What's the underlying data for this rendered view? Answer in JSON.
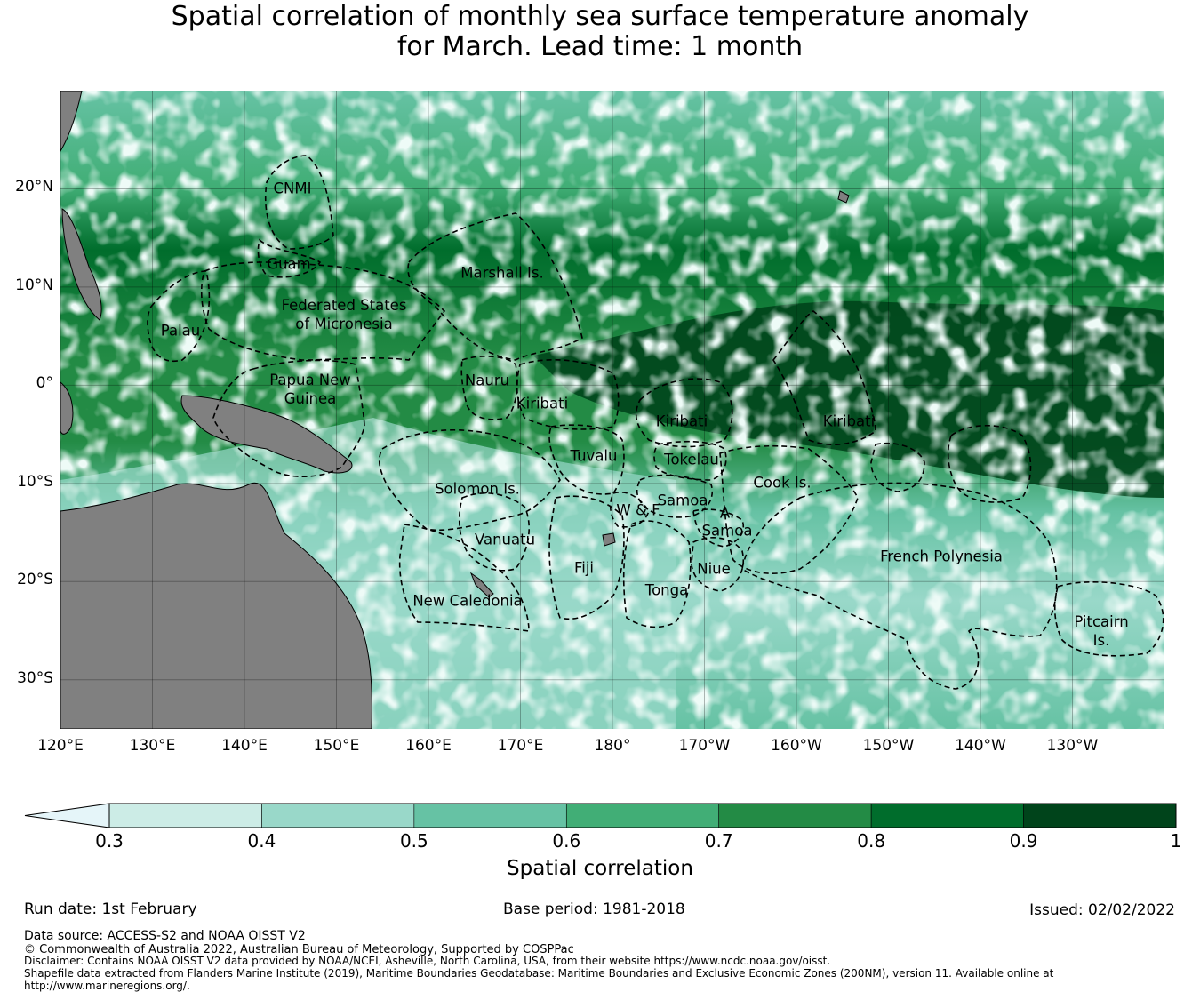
{
  "title": {
    "line1": "Spatial correlation of monthly sea surface temperature anomaly",
    "line2": "for March. Lead time: 1 month"
  },
  "map": {
    "lon_range": [
      120,
      240
    ],
    "lat_range": [
      -35,
      30
    ],
    "lat_ticks": [
      "20°N",
      "10°N",
      "0°",
      "10°S",
      "20°S",
      "30°S"
    ],
    "lon_ticks": [
      "120°E",
      "130°E",
      "140°E",
      "150°E",
      "160°E",
      "170°E",
      "180°",
      "170°W",
      "160°W",
      "150°W",
      "140°W",
      "130°W"
    ],
    "land_color": "#808080",
    "boundary_style": "dashed",
    "region_labels": [
      {
        "text": "CNMI"
      },
      {
        "text": "Guam"
      },
      {
        "text": "Marshall Is."
      },
      {
        "text": "Federated States\nof Micronesia"
      },
      {
        "text": "Palau"
      },
      {
        "text": "Papua New\nGuinea"
      },
      {
        "text": "Nauru"
      },
      {
        "text": "Kiribati"
      },
      {
        "text": "Kiribati"
      },
      {
        "text": "Kiribati"
      },
      {
        "text": "Tuvalu"
      },
      {
        "text": "Tokelau"
      },
      {
        "text": "Solomon Is."
      },
      {
        "text": "Samoa"
      },
      {
        "text": "W & F"
      },
      {
        "text": "A."
      },
      {
        "text": "Samoa"
      },
      {
        "text": "Cook Is."
      },
      {
        "text": "Vanuatu"
      },
      {
        "text": "Fiji"
      },
      {
        "text": "Niue"
      },
      {
        "text": "Tonga"
      },
      {
        "text": "French Polynesia"
      },
      {
        "text": "New Caledonia"
      },
      {
        "text": "Pitcairn\nIs."
      }
    ]
  },
  "colorbar": {
    "ticks": [
      "0.3",
      "0.4",
      "0.5",
      "0.6",
      "0.7",
      "0.8",
      "0.9",
      "1"
    ],
    "colors": [
      "#e5f5f9",
      "#ccece6",
      "#99d8c9",
      "#66c2a4",
      "#41ae76",
      "#238b45",
      "#006d2c",
      "#00441b"
    ],
    "label": "Spatial correlation"
  },
  "info": {
    "run_date": "Run date: 1st February",
    "base_period": "Base period: 1981-2018",
    "issued": "Issued: 02/02/2022"
  },
  "footer": {
    "source": "Data source: ACCESS-S2 and NOAA OISST V2",
    "copyright": "© Commonwealth of Australia 2022, Australian Bureau of Meteorology, Supported by COSPPac",
    "disclaimer": "Disclaimer: Contains NOAA OISST V2 data provided by NOAA/NCEI, Asheville, North Carolina, USA, from their website https://www.ncdc.noaa.gov/oisst.",
    "shapefile1": "Shapefile data extracted from Flanders Marine Institute (2019), Maritime Boundaries Geodatabase: Maritime Boundaries and Exclusive Economic Zones (200NM), version 11. Available online at",
    "shapefile2": "http://www.marineregions.org/."
  }
}
